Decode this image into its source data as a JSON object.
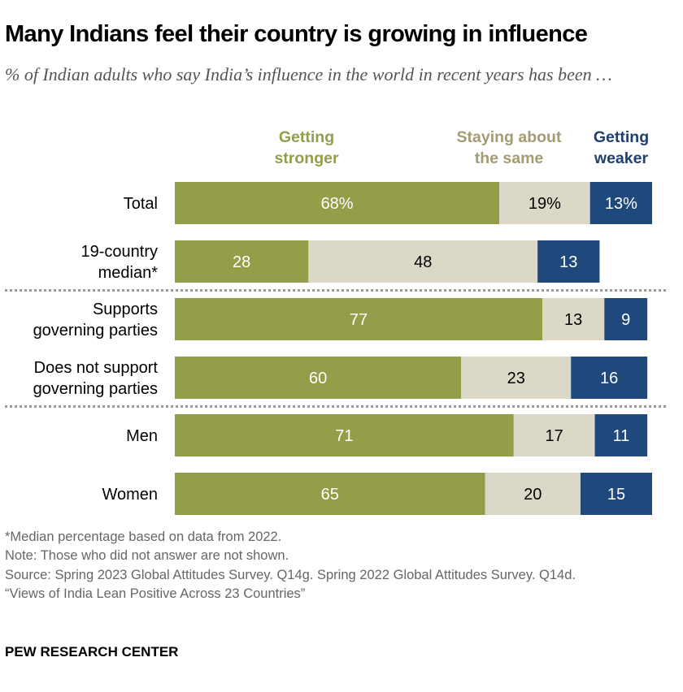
{
  "chart_data": {
    "type": "bar",
    "orientation": "horizontal",
    "stacked": true,
    "title": "Many Indians feel their country is growing in influence",
    "subtitle": "% of Indian adults who say India’s influence in the world in recent years has been …",
    "categories": [
      "Total",
      "19-country median*",
      "Supports governing parties",
      "Does not support governing parties",
      "Men",
      "Women"
    ],
    "category_lines": [
      [
        "Total"
      ],
      [
        "19-country",
        "median*"
      ],
      [
        "Supports",
        "governing parties"
      ],
      [
        "Does not support",
        "governing parties"
      ],
      [
        "Men"
      ],
      [
        "Women"
      ]
    ],
    "series": [
      {
        "name": "Getting stronger",
        "legend_lines": [
          "Getting",
          "stronger"
        ],
        "color": "#949D48",
        "legend_color": "#949D48",
        "label_color": "#ffffff",
        "values": [
          68,
          28,
          77,
          60,
          71,
          65
        ]
      },
      {
        "name": "Staying about the same",
        "legend_lines": [
          "Staying about",
          "the same"
        ],
        "color": "#DCD8C8",
        "legend_color": "#A39B73",
        "label_color": "#000000",
        "values": [
          19,
          48,
          13,
          23,
          17,
          20
        ]
      },
      {
        "name": "Getting weaker",
        "legend_lines": [
          "Getting",
          "weaker"
        ],
        "color": "#1F487C",
        "legend_color": "#1F3F6E",
        "label_color": "#ffffff",
        "values": [
          13,
          13,
          9,
          16,
          11,
          15
        ]
      }
    ],
    "data_labels": [
      [
        "68%",
        "19%",
        "13%"
      ],
      [
        "28",
        "48",
        "13"
      ],
      [
        "77",
        "13",
        "9"
      ],
      [
        "60",
        "23",
        "16"
      ],
      [
        "71",
        "17",
        "11"
      ],
      [
        "65",
        "20",
        "15"
      ]
    ],
    "group_dividers_after": [
      1,
      3
    ],
    "xlim": [
      0,
      100
    ],
    "legend_placement": "top",
    "grid": false
  },
  "notes": [
    "*Median percentage based on data from 2022.",
    "Note: Those who did not answer are not shown.",
    "Source: Spring 2023 Global Attitudes Survey. Q14g. Spring 2022 Global Attitudes Survey. Q14d.",
    "“Views of India Lean Positive Across 23 Countries”"
  ],
  "brand": "PEW RESEARCH CENTER"
}
